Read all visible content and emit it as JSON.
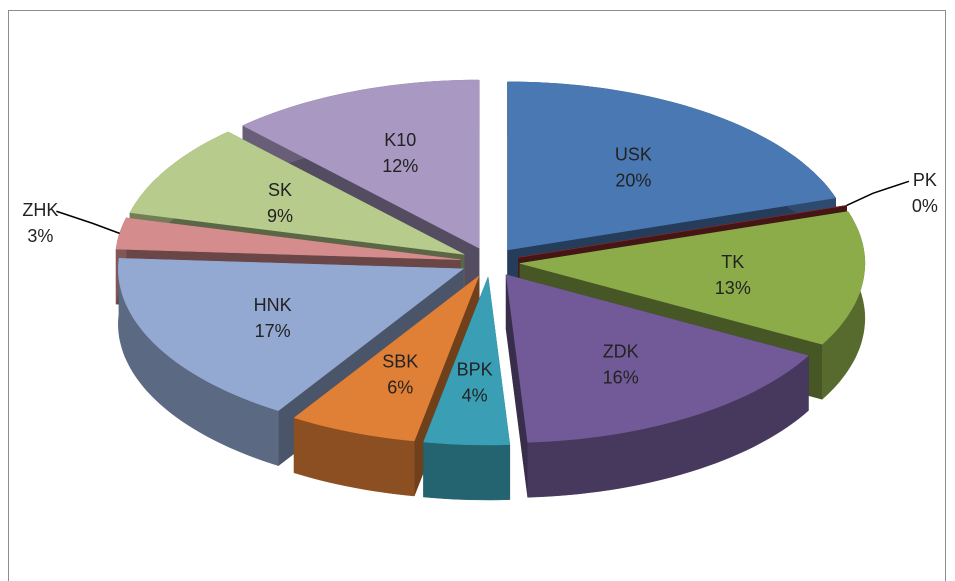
{
  "chart_data": {
    "type": "pie",
    "categories": [
      "USK",
      "PK",
      "TK",
      "ZDK",
      "BPK",
      "SBK",
      "HNK",
      "ZHK",
      "SK",
      "K10"
    ],
    "values": [
      20,
      0,
      13,
      16,
      4,
      6,
      17,
      3,
      9,
      12
    ],
    "value_labels": [
      "20%",
      "0%",
      "13%",
      "16%",
      "4%",
      "6%",
      "17%",
      "3%",
      "9%",
      "12%"
    ],
    "colors": [
      "#4a78b3",
      "#8a2c2c",
      "#8cac4a",
      "#725a98",
      "#3a9fb4",
      "#e07f36",
      "#93a9d2",
      "#d48c8c",
      "#b6cb8c",
      "#a898c2"
    ]
  }
}
